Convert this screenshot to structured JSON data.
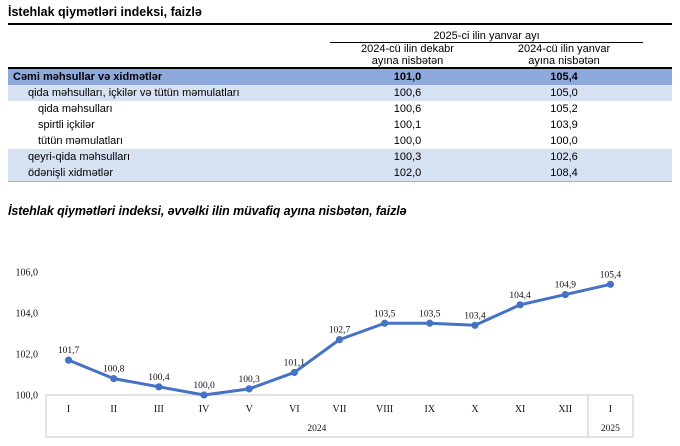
{
  "table": {
    "title": "İstehlak qiymətləri indeksi, faizlə",
    "group_header": "2025-ci ilin yanvar ayı",
    "col_headers": [
      {
        "lines": [
          "2024-cü ilin dekabr",
          "ayına nisbətən"
        ]
      },
      {
        "lines": [
          "2024-cü ilin yanvar",
          "ayına nisbətən"
        ]
      }
    ],
    "rows": [
      {
        "label": "Cəmi məhsullar və xidmətlər",
        "values": [
          "101,0",
          "105,4"
        ],
        "style": "total",
        "indent": 0
      },
      {
        "label": "qida məhsulları, içkilər və tütün məmulatları",
        "values": [
          "100,6",
          "105,0"
        ],
        "style": "stripe",
        "indent": 1
      },
      {
        "label": "qida məhsulları",
        "values": [
          "100,6",
          "105,2"
        ],
        "style": "plain",
        "indent": 2
      },
      {
        "label": "spirtli içkilər",
        "values": [
          "100,1",
          "103,9"
        ],
        "style": "plain",
        "indent": 2
      },
      {
        "label": "tütün məmulatları",
        "values": [
          "100,0",
          "100,0"
        ],
        "style": "plain",
        "indent": 2
      },
      {
        "label": "qeyri-qida məhsulları",
        "values": [
          "100,3",
          "102,6"
        ],
        "style": "stripe",
        "indent": 1
      },
      {
        "label": "ödənişli xidmətlər",
        "values": [
          "102,0",
          "108,4"
        ],
        "style": "stripe",
        "indent": 1
      }
    ],
    "colors": {
      "total_row_bg": "#8ea9db",
      "stripe_row_bg": "#d6e1f2"
    }
  },
  "chart_data": {
    "type": "line",
    "title": "İstehlak qiymətləri indeksi, əvvəlki ilin müvafiq ayına nisbətən, faizlə",
    "x": [
      "I",
      "II",
      "III",
      "IV",
      "V",
      "VI",
      "VII",
      "VIII",
      "IX",
      "X",
      "XI",
      "XII",
      "I"
    ],
    "x_groups": [
      {
        "label": "2024",
        "span": 12
      },
      {
        "label": "2025",
        "span": 1
      }
    ],
    "values": [
      101.7,
      100.8,
      100.4,
      100.0,
      100.3,
      101.1,
      102.7,
      103.5,
      103.5,
      103.4,
      104.4,
      104.9,
      105.4
    ],
    "point_labels": [
      "101,7",
      "100,8",
      "100,4",
      "100,0",
      "100,3",
      "101,1",
      "102,7",
      "103,5",
      "103,5",
      "103,4",
      "104,4",
      "104,9",
      "105,4"
    ],
    "ylim": [
      100.0,
      106.0
    ],
    "yticks": [
      {
        "value": 100.0,
        "label": "100,0"
      },
      {
        "value": 102.0,
        "label": "102,0"
      },
      {
        "value": 104.0,
        "label": "104,0"
      },
      {
        "value": 106.0,
        "label": "106,0"
      }
    ],
    "grid": false,
    "legend": "none",
    "line_color": "#4472C4",
    "axis_box_color": "#c9c9c9"
  }
}
